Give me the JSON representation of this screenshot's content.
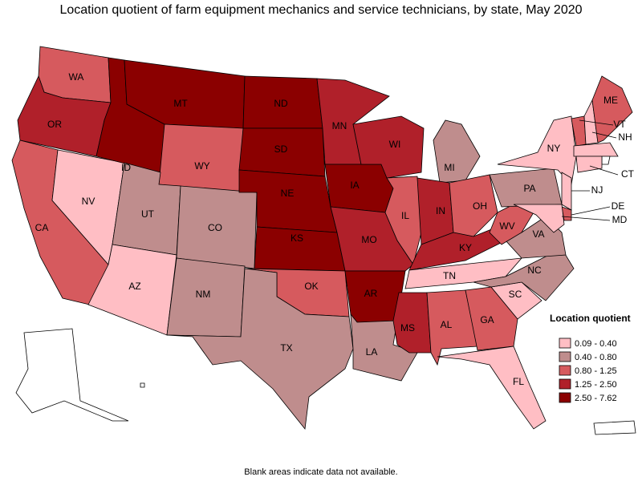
{
  "title": "Location quotient of farm equipment mechanics and service technicians, by state, May 2020",
  "legend": {
    "title": "Location quotient",
    "classes": [
      {
        "label": "0.09 - 0.40",
        "color": "#ffbec4"
      },
      {
        "label": "0.40 - 0.80",
        "color": "#bf8d8d"
      },
      {
        "label": "0.80 - 1.25",
        "color": "#d65a5e"
      },
      {
        "label": "1.25 - 2.50",
        "color": "#b0202a"
      },
      {
        "label": "2.50 - 7.62",
        "color": "#8b0000"
      }
    ]
  },
  "blank_color": "#ffffff",
  "states": [
    {
      "label": "WA",
      "class": 2
    },
    {
      "label": "OR",
      "class": 3
    },
    {
      "label": "CA",
      "class": 2
    },
    {
      "label": "NV",
      "class": 0
    },
    {
      "label": "ID",
      "class": 4
    },
    {
      "label": "MT",
      "class": 4
    },
    {
      "label": "WY",
      "class": 2
    },
    {
      "label": "UT",
      "class": 1
    },
    {
      "label": "AZ",
      "class": 0
    },
    {
      "label": "CO",
      "class": 1
    },
    {
      "label": "NM",
      "class": 1
    },
    {
      "label": "ND",
      "class": 4
    },
    {
      "label": "SD",
      "class": 4
    },
    {
      "label": "NE",
      "class": 4
    },
    {
      "label": "KS",
      "class": 4
    },
    {
      "label": "OK",
      "class": 2
    },
    {
      "label": "TX",
      "class": 1
    },
    {
      "label": "MN",
      "class": 3
    },
    {
      "label": "IA",
      "class": 4
    },
    {
      "label": "MO",
      "class": 3
    },
    {
      "label": "AR",
      "class": 4
    },
    {
      "label": "LA",
      "class": 1
    },
    {
      "label": "WI",
      "class": 3
    },
    {
      "label": "IL",
      "class": 2
    },
    {
      "label": "MI",
      "class": 1
    },
    {
      "label": "IN",
      "class": 3
    },
    {
      "label": "OH",
      "class": 2
    },
    {
      "label": "KY",
      "class": 3
    },
    {
      "label": "TN",
      "class": 0
    },
    {
      "label": "MS",
      "class": 3
    },
    {
      "label": "AL",
      "class": 2
    },
    {
      "label": "GA",
      "class": 2
    },
    {
      "label": "FL",
      "class": 0
    },
    {
      "label": "SC",
      "class": 0
    },
    {
      "label": "NC",
      "class": 1
    },
    {
      "label": "VA",
      "class": 1
    },
    {
      "label": "WV",
      "class": 2
    },
    {
      "label": "PA",
      "class": 1
    },
    {
      "label": "NY",
      "class": 0
    },
    {
      "label": "NJ",
      "class": 0
    },
    {
      "label": "DE",
      "class": 2
    },
    {
      "label": "MD",
      "class": 0
    },
    {
      "label": "VT",
      "class": 2
    },
    {
      "label": "NH",
      "class": 0
    },
    {
      "label": "ME",
      "class": 2
    },
    {
      "class": 0
    },
    {
      "class": null
    },
    {
      "label": "CT",
      "class": 0
    },
    {
      "class": null
    },
    {
      "class": null
    },
    {
      "class": null
    }
  ],
  "note": "Blank areas indicate data not available."
}
